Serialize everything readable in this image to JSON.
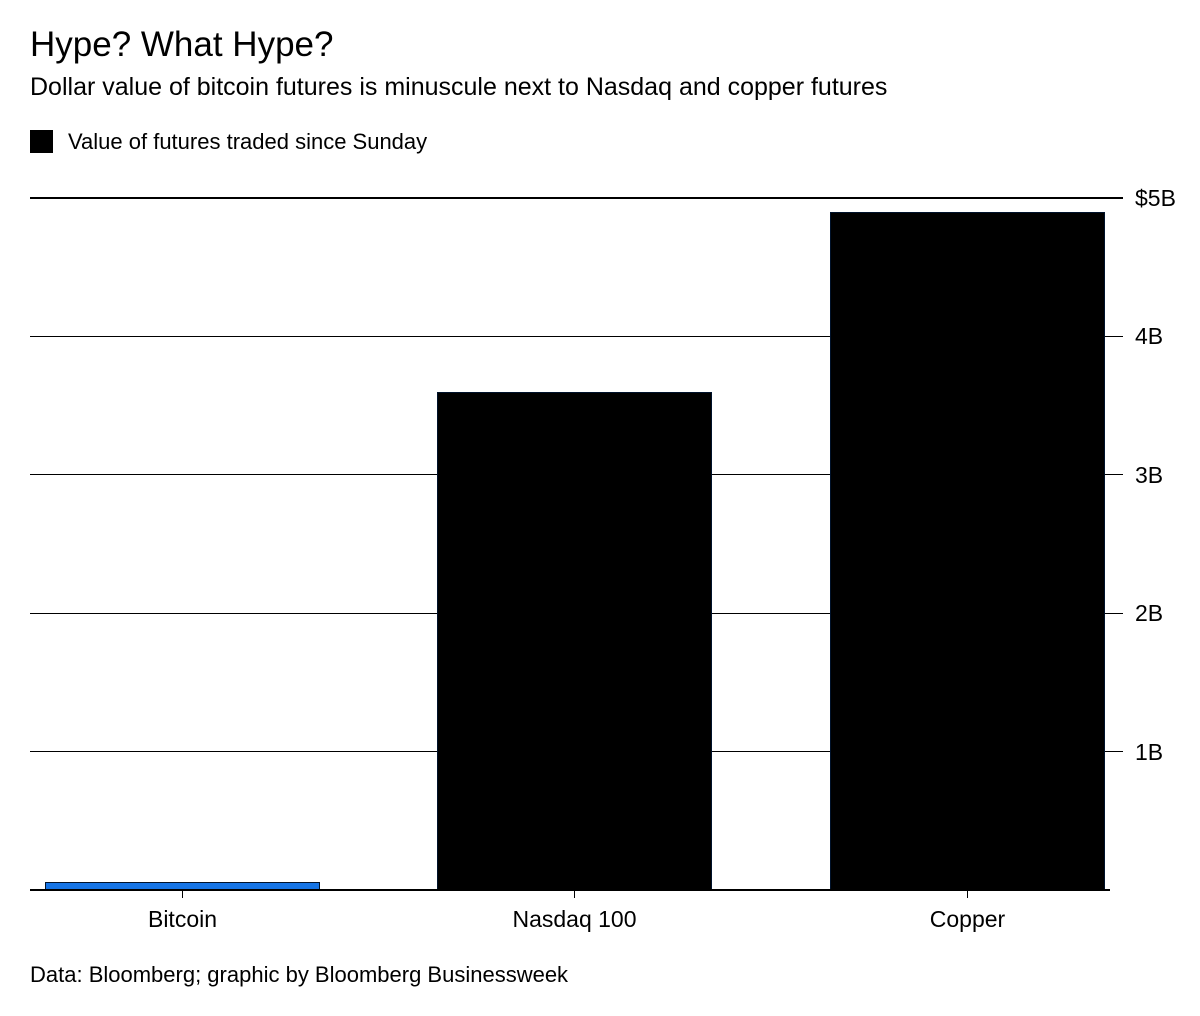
{
  "header": {
    "title": "Hype? What Hype?",
    "subtitle": "Dollar value of bitcoin futures is minuscule next to Nasdaq and copper futures"
  },
  "legend": {
    "label": "Value of futures traded since Sunday",
    "swatch_color": "#000000"
  },
  "chart_data": {
    "type": "bar",
    "title": "Hype? What Hype?",
    "subtitle": "Dollar value of bitcoin futures is minuscule next to Nasdaq and copper futures",
    "legend": "Value of futures traded since Sunday",
    "categories": [
      "Bitcoin",
      "Nasdaq 100",
      "Copper"
    ],
    "values": [
      0.06,
      3.6,
      4.9
    ],
    "unit": "billions of US dollars",
    "bar_colors": [
      "#1574E6",
      "#000000",
      "#000000"
    ],
    "bar_border_color": "#00122B",
    "ylim": [
      0,
      5
    ],
    "yticks": [
      5,
      4,
      3,
      2,
      1
    ],
    "ytick_labels": [
      "$5B",
      "4B",
      "3B",
      "2B",
      "1B"
    ],
    "ytick_side": "right",
    "grid": true,
    "legend_position": "top-left",
    "xlabel": "",
    "ylabel": ""
  },
  "footer": {
    "source": "Data: Bloomberg; graphic by Bloomberg Businessweek"
  }
}
